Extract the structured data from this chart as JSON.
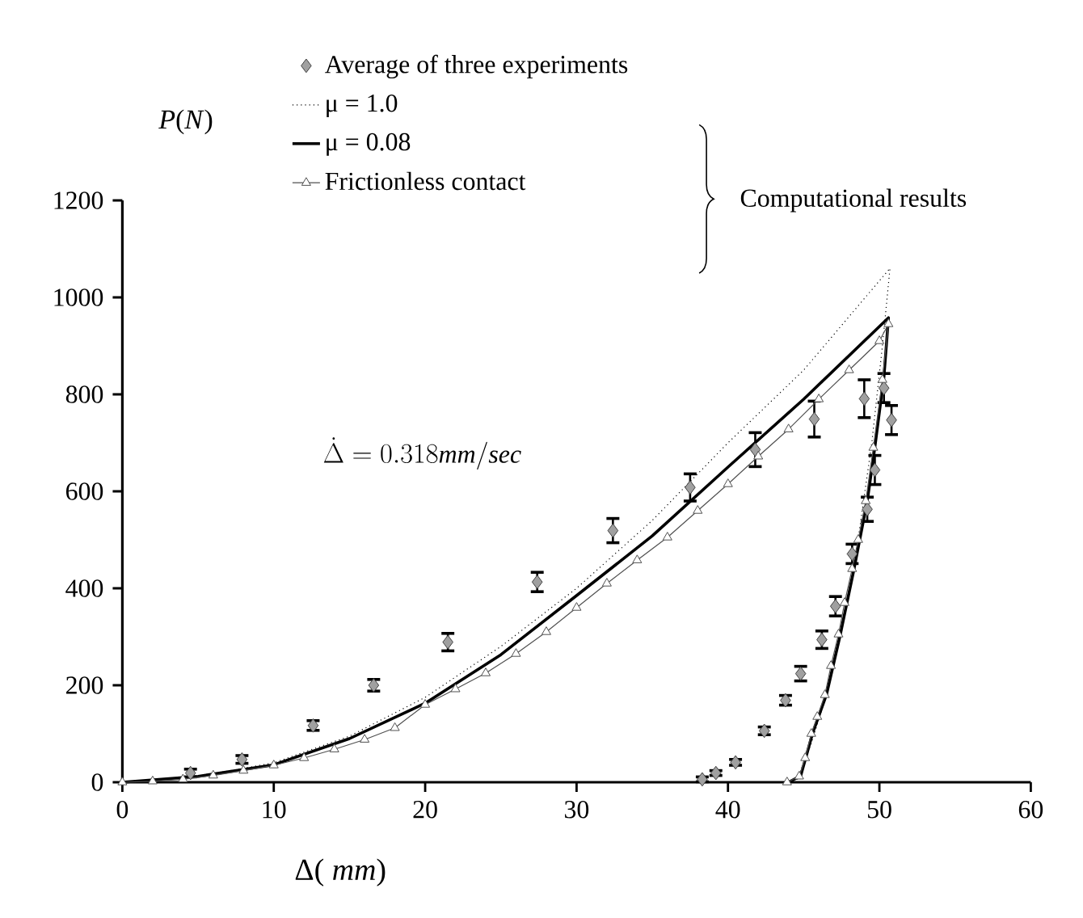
{
  "chart_data": {
    "type": "line",
    "xlabel": "Δ( *mm*)",
    "ylabel": "*P*(*N*)",
    "xlim": [
      0,
      60
    ],
    "ylim": [
      0,
      1200
    ],
    "xticks": [
      0,
      10,
      20,
      30,
      40,
      50,
      60
    ],
    "yticks": [
      0,
      200,
      400,
      600,
      800,
      1000,
      1200
    ],
    "legend": "top",
    "annotations": [
      "Computational results",
      "\\dot{\\Delta} = 0.318\\mathit{mm/sec}"
    ],
    "series": [
      {
        "name": "Average of three experiments",
        "type": "scatter",
        "marker": "diamond",
        "color": "#a0a0a0",
        "x": [
          4.5,
          7.9,
          12.6,
          16.6,
          21.5,
          27.4,
          32.4,
          37.5,
          41.8,
          45.7,
          49.0,
          50.3,
          50.8,
          49.7,
          49.2,
          48.2,
          47.1,
          46.2,
          44.8,
          43.8,
          42.4,
          40.5,
          39.2,
          38.3
        ],
        "values": [
          19,
          47,
          117,
          200,
          289,
          413,
          519,
          608,
          686,
          749,
          791,
          813,
          747,
          644,
          563,
          471,
          363,
          294,
          224,
          169,
          106,
          41,
          19,
          6
        ],
        "errors": [
          8,
          8,
          10,
          12,
          18,
          20,
          25,
          28,
          35,
          37,
          39,
          30,
          30,
          30,
          25,
          20,
          20,
          18,
          15,
          10,
          8,
          6,
          5,
          5
        ]
      },
      {
        "name": "μ = 1.0",
        "marker": "none",
        "line_style": "dotted",
        "color": "#000000",
        "x": [
          0,
          5,
          10,
          15,
          20,
          25,
          30,
          35,
          40,
          45,
          50.7,
          50.2,
          49.5,
          48.5,
          47.5,
          46.5,
          45.5,
          44.5
        ],
        "values": [
          0,
          12,
          40,
          95,
          175,
          280,
          400,
          540,
          700,
          850,
          1060,
          900,
          700,
          480,
          310,
          180,
          80,
          0
        ]
      },
      {
        "name": "μ = 0.08",
        "marker": "none",
        "line_style": "solid",
        "color": "#000000",
        "x": [
          0,
          5,
          10,
          15,
          20,
          25,
          30,
          35,
          40,
          45,
          50.6,
          50.3,
          49.7,
          49.2,
          48.3,
          47.4,
          46.5,
          45.6,
          44.8,
          44.0
        ],
        "values": [
          0,
          12,
          36,
          90,
          163,
          263,
          385,
          508,
          650,
          790,
          958,
          836,
          691,
          580,
          436,
          302,
          180,
          102,
          13,
          0
        ]
      },
      {
        "name": "Frictionless contact",
        "marker": "triangle",
        "line_style": "solid",
        "color": "#505050",
        "x": [
          0,
          2,
          4,
          6,
          8,
          10,
          12,
          14,
          16,
          18,
          20,
          22,
          24,
          26,
          28,
          30,
          32,
          34,
          36,
          38,
          40,
          42,
          44,
          46,
          48,
          50,
          50.6,
          50.2,
          49.6,
          49.1,
          48.6,
          48.2,
          47.7,
          47.3,
          46.8,
          46.4,
          45.9,
          45.5,
          45.1,
          44.7,
          43.9
        ],
        "values": [
          0,
          2,
          6,
          14,
          24,
          35,
          50,
          68,
          88,
          112,
          160,
          192,
          225,
          265,
          310,
          360,
          410,
          458,
          505,
          560,
          615,
          672,
          728,
          790,
          850,
          910,
          945,
          830,
          690,
          580,
          500,
          440,
          370,
          305,
          240,
          180,
          135,
          100,
          50,
          12,
          0
        ]
      }
    ]
  }
}
